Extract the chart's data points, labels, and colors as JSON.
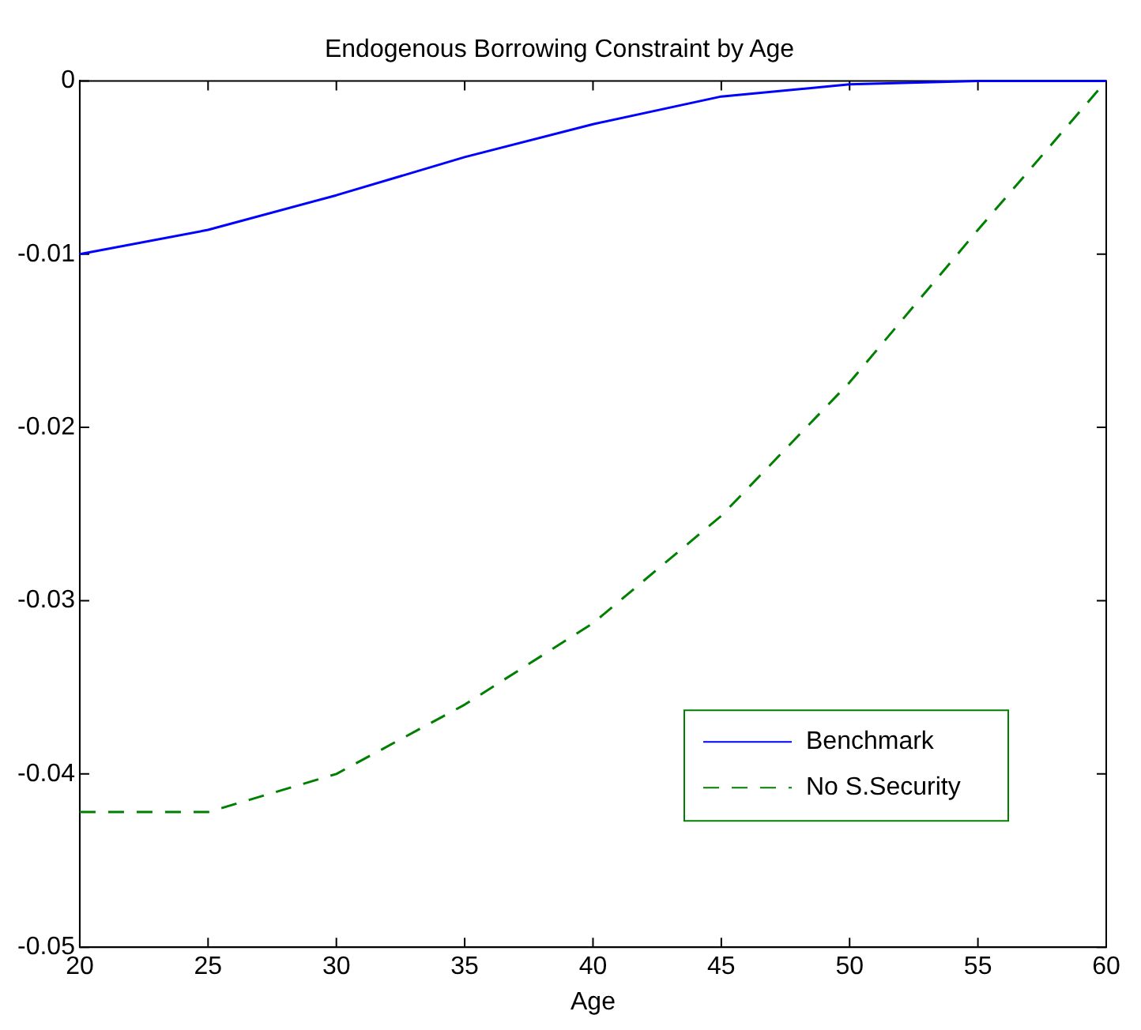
{
  "chart_data": {
    "type": "line",
    "title": "Endogenous Borrowing Constraint by Age",
    "xlabel": "Age",
    "x": [
      20,
      25,
      30,
      35,
      40,
      45,
      50,
      55,
      60
    ],
    "series": [
      {
        "name": "Benchmark",
        "color": "#0000ff",
        "line_style": "solid",
        "values": [
          -0.01,
          -0.0086,
          -0.0066,
          -0.0044,
          -0.0025,
          -0.0009,
          -0.0002,
          0,
          0
        ]
      },
      {
        "name": "No S.Security",
        "color": "#008000",
        "line_style": "dashed",
        "values": [
          -0.0422,
          -0.0422,
          -0.04,
          -0.036,
          -0.0313,
          -0.0251,
          -0.0174,
          -0.0086,
          0
        ]
      }
    ],
    "xlim": [
      20,
      60
    ],
    "xticks": [
      20,
      25,
      30,
      35,
      40,
      45,
      50,
      55,
      60
    ],
    "ylim": [
      -0.05,
      0
    ],
    "yticks": [
      -0.05,
      -0.04,
      -0.03,
      -0.02,
      -0.01,
      0
    ],
    "grid": false,
    "legend": "bottom right",
    "marker": "none"
  }
}
